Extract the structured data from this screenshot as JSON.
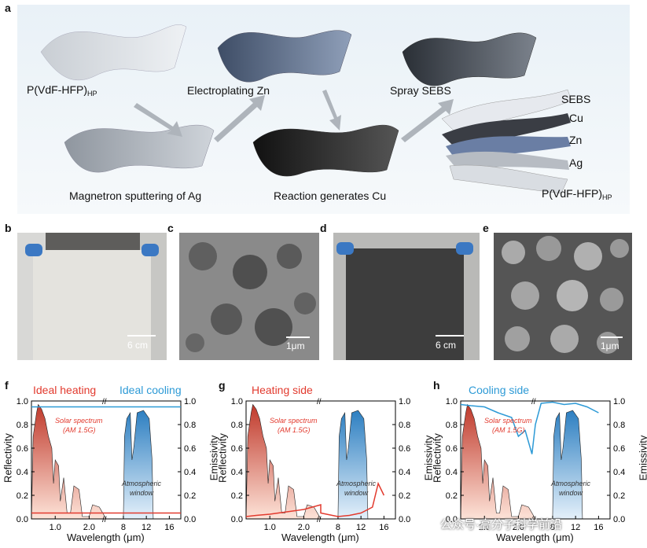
{
  "panel_letters": {
    "a": "a",
    "b": "b",
    "c": "c",
    "d": "d",
    "e": "e",
    "f": "f",
    "g": "g",
    "h": "h"
  },
  "panel_a": {
    "step1": "P(VdF-HFP)",
    "step1_sub": "HP",
    "step2": "Magnetron sputtering of Ag",
    "step3": "Electroplating Zn",
    "step4": "Reaction generates Cu",
    "step5": "Spray SEBS",
    "layers": [
      "SEBS",
      "Cu",
      "Zn",
      "Ag"
    ],
    "layer_base": "P(VdF-HFP)",
    "layer_base_sub": "HP",
    "colors": {
      "white_film": "#cfd3d8",
      "gray_film": "#9aa0a8",
      "blue_film": "#5a6b86",
      "black_film": "#222222"
    }
  },
  "photos": {
    "b_scale": "6 cm",
    "c_scale": "1μm",
    "d_scale": "6 cm",
    "e_scale": "1μm"
  },
  "charts": {
    "y_left": "Reflectivity",
    "y_right": "Emissivity",
    "xlabel": "Wavelength (μm)",
    "xticks_left": [
      "1.0",
      "2.0"
    ],
    "xticks_right": [
      "8",
      "12",
      "16"
    ],
    "yticks": [
      "0.0",
      "0.2",
      "0.4",
      "0.6",
      "0.8",
      "1.0"
    ],
    "solar_label_1": "Solar spectrum",
    "solar_label_2": "(AM 1.5G)",
    "atm_label_1": "Atmospheric",
    "atm_label_2": "window",
    "f_legend_red": "Ideal heating",
    "f_legend_blue": "Ideal cooling",
    "g_legend": "Heating side",
    "h_legend": "Cooling side"
  },
  "chart_data": [
    {
      "type": "line",
      "panel": "f",
      "series": [
        {
          "name": "Ideal heating",
          "color": "#e23a2e",
          "x": [
            0.3,
            2.5,
            8,
            18
          ],
          "values": [
            0.05,
            0.05,
            0.05,
            0.05
          ]
        },
        {
          "name": "Ideal cooling",
          "color": "#2d9ad6",
          "x": [
            0.3,
            2.5,
            8,
            18
          ],
          "values": [
            0.95,
            0.95,
            0.95,
            0.95
          ]
        }
      ]
    },
    {
      "type": "line",
      "panel": "g",
      "series": [
        {
          "name": "Heating side",
          "color": "#e23a2e",
          "x": [
            0.3,
            0.6,
            1.0,
            1.5,
            2.0,
            2.5,
            5,
            8,
            10,
            12,
            14,
            15,
            16
          ],
          "values": [
            0.02,
            0.03,
            0.04,
            0.06,
            0.08,
            0.12,
            0.05,
            0.02,
            0.03,
            0.05,
            0.1,
            0.3,
            0.2
          ]
        }
      ]
    },
    {
      "type": "line",
      "panel": "h",
      "series": [
        {
          "name": "Cooling side",
          "color": "#2d9ad6",
          "x": [
            0.3,
            0.6,
            1.0,
            1.4,
            1.8,
            2.0,
            2.2,
            2.4,
            2.5,
            6,
            8,
            10,
            12,
            14,
            16
          ],
          "values": [
            0.97,
            0.96,
            0.95,
            0.9,
            0.86,
            0.7,
            0.75,
            0.55,
            0.8,
            0.98,
            0.99,
            0.97,
            0.98,
            0.95,
            0.9
          ]
        }
      ]
    }
  ]
}
